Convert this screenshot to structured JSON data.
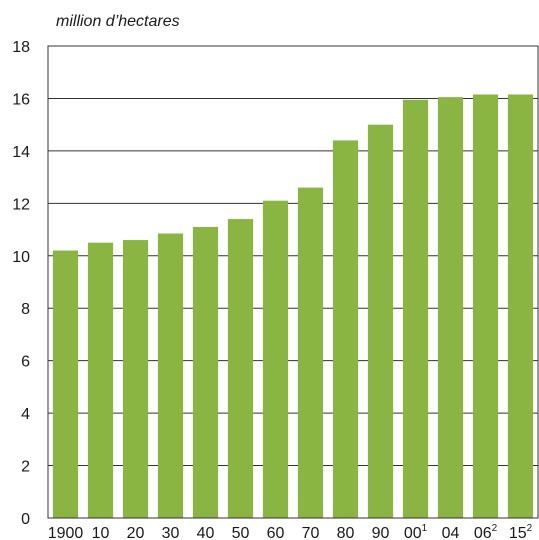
{
  "chart_data": {
    "type": "bar",
    "unit_label": "million d’hectares",
    "categories": [
      {
        "label": "1900",
        "sup": ""
      },
      {
        "label": "10",
        "sup": ""
      },
      {
        "label": "20",
        "sup": ""
      },
      {
        "label": "30",
        "sup": ""
      },
      {
        "label": "40",
        "sup": ""
      },
      {
        "label": "50",
        "sup": ""
      },
      {
        "label": "60",
        "sup": ""
      },
      {
        "label": "70",
        "sup": ""
      },
      {
        "label": "80",
        "sup": ""
      },
      {
        "label": "90",
        "sup": ""
      },
      {
        "label": "00",
        "sup": "1"
      },
      {
        "label": "04",
        "sup": ""
      },
      {
        "label": "06",
        "sup": "2"
      },
      {
        "label": "15",
        "sup": "2"
      }
    ],
    "values": [
      10.2,
      10.5,
      10.6,
      10.85,
      11.1,
      11.4,
      12.1,
      12.6,
      14.4,
      15.0,
      15.95,
      16.05,
      16.15,
      16.15
    ],
    "ylim": [
      0,
      18
    ],
    "yticks": [
      0,
      2,
      4,
      6,
      8,
      10,
      12,
      14,
      16,
      18
    ],
    "grid": "horizontal",
    "legend": "none",
    "colors": {
      "bar": "#8bb543",
      "axis": "#333333",
      "grid": "#333333",
      "text": "#1a1a1a"
    }
  }
}
